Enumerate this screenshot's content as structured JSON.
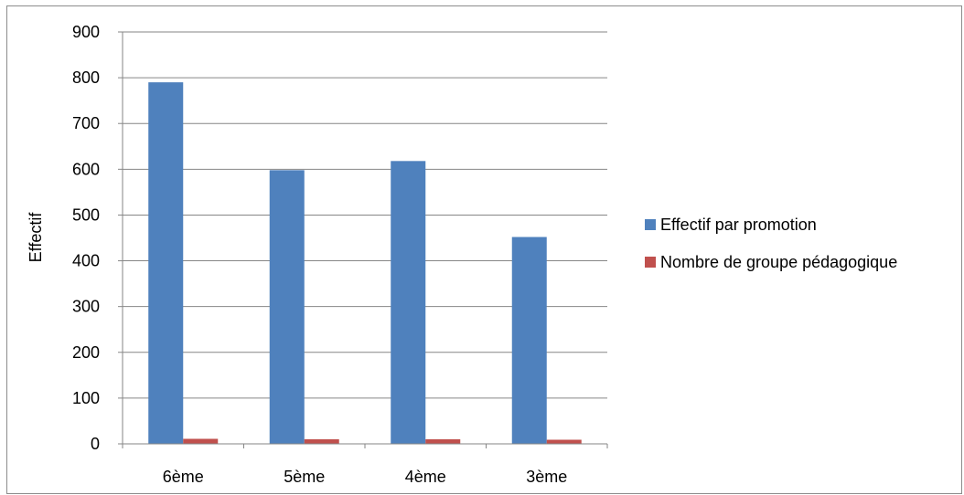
{
  "chart_data": {
    "type": "bar",
    "title": "",
    "xlabel": "",
    "ylabel": "Effectif",
    "ylim": [
      0,
      900
    ],
    "yticks": [
      "0",
      "100",
      "200",
      "300",
      "400",
      "500",
      "600",
      "700",
      "800",
      "900"
    ],
    "categories": [
      "6ème",
      "5ème",
      "4ème",
      "3ème"
    ],
    "series": [
      {
        "name": "Effectif par promotion",
        "color": "#4f81bd",
        "values": [
          790,
          598,
          618,
          452
        ]
      },
      {
        "name": "Nombre de groupe pédagogique",
        "color": "#c0504d",
        "values": [
          11,
          10,
          10,
          9
        ]
      }
    ],
    "grid": true,
    "legend_position": "right"
  }
}
